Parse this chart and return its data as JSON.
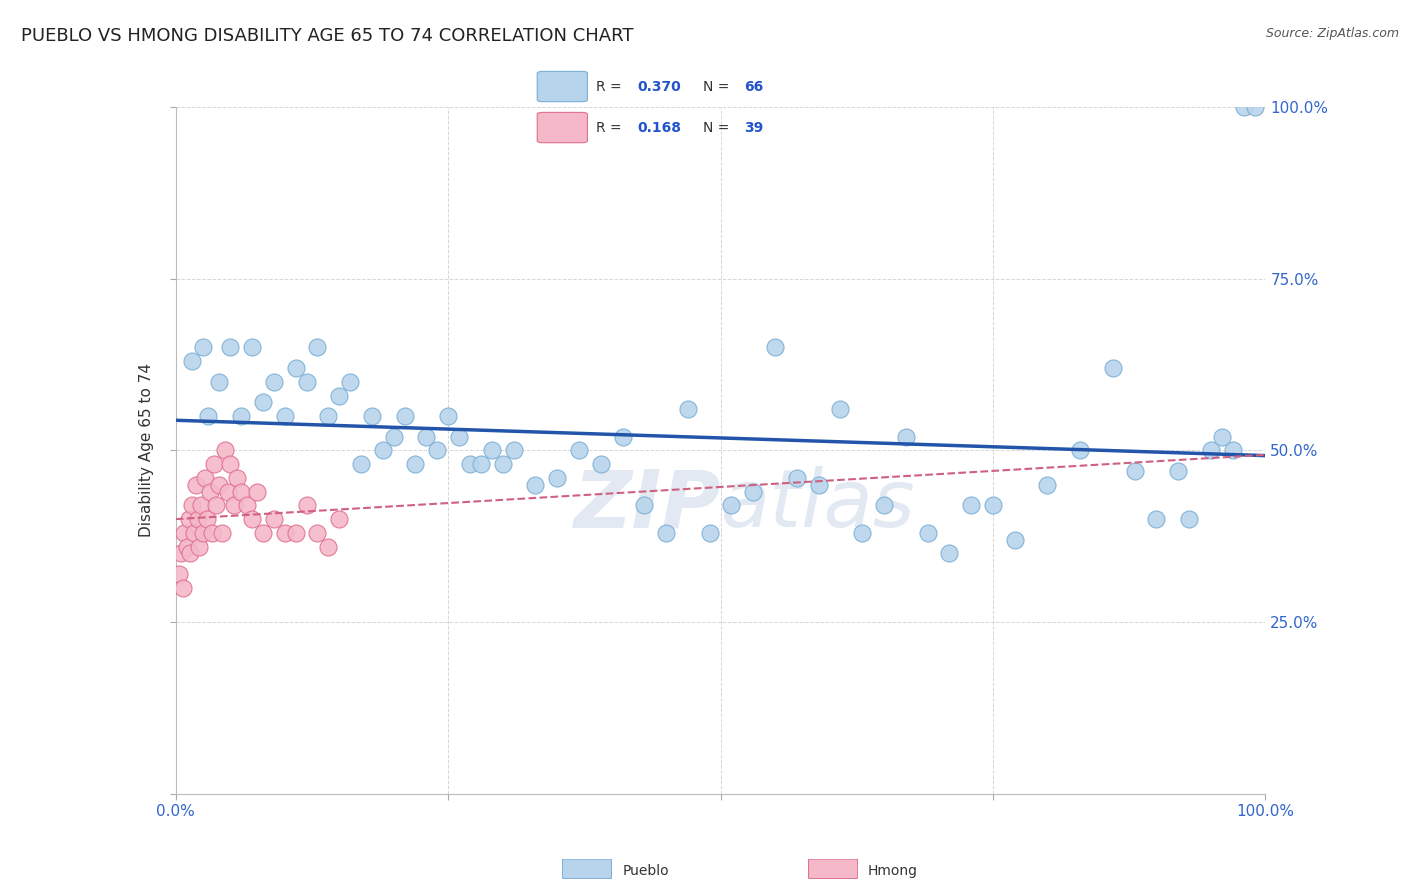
{
  "title": "PUEBLO VS HMONG DISABILITY AGE 65 TO 74 CORRELATION CHART",
  "source": "Source: ZipAtlas.com",
  "ylabel": "Disability Age 65 to 74",
  "pueblo_R": 0.37,
  "pueblo_N": 66,
  "hmong_R": 0.168,
  "hmong_N": 39,
  "pueblo_color": "#b8d4ec",
  "pueblo_edge": "#7aafd4",
  "hmong_color": "#f4b8c8",
  "hmong_edge": "#e07090",
  "trend_blue": "#2255aa",
  "trend_pink": "#d06080",
  "background_color": "#ffffff",
  "grid_color": "#cccccc",
  "title_fontsize": 13,
  "label_fontsize": 11,
  "tick_fontsize": 11,
  "watermark_color": "#ccd8e8",
  "pueblo_x": [
    1.5,
    2.5,
    3.0,
    4.0,
    5.0,
    6.0,
    7.0,
    8.0,
    9.0,
    10.0,
    11.0,
    12.0,
    13.0,
    14.0,
    15.0,
    16.0,
    17.0,
    18.0,
    19.0,
    20.0,
    21.0,
    22.0,
    23.0,
    24.0,
    25.0,
    26.0,
    27.0,
    28.0,
    29.0,
    30.0,
    31.0,
    33.0,
    35.0,
    37.0,
    39.0,
    41.0,
    43.0,
    45.0,
    47.0,
    49.0,
    51.0,
    53.0,
    55.0,
    57.0,
    59.0,
    61.0,
    63.0,
    65.0,
    67.0,
    69.0,
    71.0,
    73.0,
    75.0,
    77.0,
    80.0,
    83.0,
    86.0,
    88.0,
    90.0,
    92.0,
    93.0,
    95.0,
    96.0,
    97.0,
    98.0,
    99.0
  ],
  "pueblo_y": [
    63.0,
    65.0,
    55.0,
    60.0,
    65.0,
    55.0,
    65.0,
    57.0,
    60.0,
    55.0,
    62.0,
    60.0,
    65.0,
    55.0,
    58.0,
    60.0,
    48.0,
    55.0,
    50.0,
    52.0,
    55.0,
    48.0,
    52.0,
    50.0,
    55.0,
    52.0,
    48.0,
    48.0,
    50.0,
    48.0,
    50.0,
    45.0,
    46.0,
    50.0,
    48.0,
    52.0,
    42.0,
    38.0,
    56.0,
    38.0,
    42.0,
    44.0,
    65.0,
    46.0,
    45.0,
    56.0,
    38.0,
    42.0,
    52.0,
    38.0,
    35.0,
    42.0,
    42.0,
    37.0,
    45.0,
    50.0,
    62.0,
    47.0,
    40.0,
    47.0,
    40.0,
    50.0,
    52.0,
    50.0,
    100.0,
    100.0
  ],
  "hmong_x": [
    0.3,
    0.5,
    0.7,
    0.8,
    1.0,
    1.2,
    1.3,
    1.5,
    1.7,
    1.9,
    2.0,
    2.1,
    2.3,
    2.5,
    2.7,
    2.9,
    3.1,
    3.3,
    3.5,
    3.7,
    4.0,
    4.2,
    4.5,
    4.8,
    5.0,
    5.3,
    5.6,
    6.0,
    6.5,
    7.0,
    7.5,
    8.0,
    9.0,
    10.0,
    11.0,
    12.0,
    13.0,
    14.0,
    15.0
  ],
  "hmong_y": [
    32.0,
    35.0,
    30.0,
    38.0,
    36.0,
    40.0,
    35.0,
    42.0,
    38.0,
    45.0,
    40.0,
    36.0,
    42.0,
    38.0,
    46.0,
    40.0,
    44.0,
    38.0,
    48.0,
    42.0,
    45.0,
    38.0,
    50.0,
    44.0,
    48.0,
    42.0,
    46.0,
    44.0,
    42.0,
    40.0,
    44.0,
    38.0,
    40.0,
    38.0,
    38.0,
    42.0,
    38.0,
    36.0,
    40.0
  ]
}
